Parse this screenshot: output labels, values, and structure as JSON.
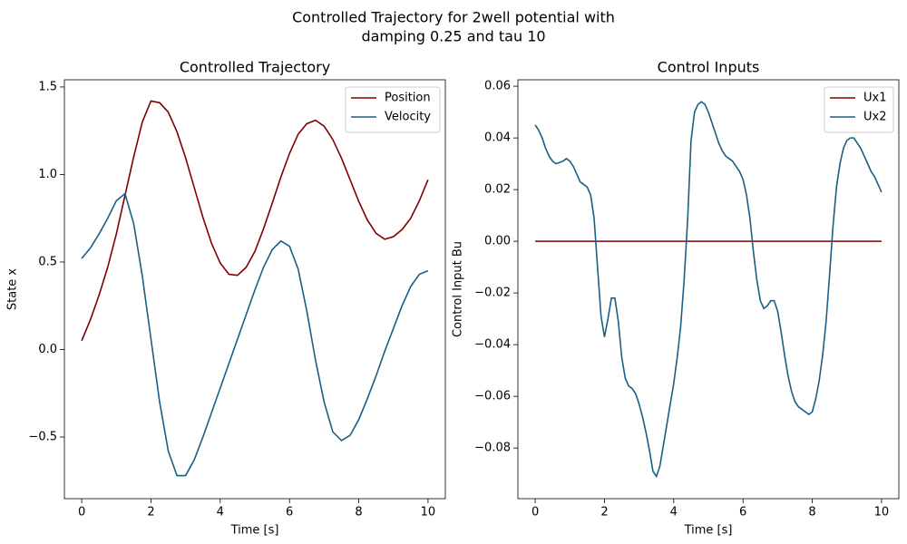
{
  "title": [
    "Controlled Trajectory for 2well potential with",
    "damping 0.25 and tau 10"
  ],
  "chart_data": [
    {
      "type": "line",
      "title": "Controlled Trajectory",
      "xlabel": "Time [s]",
      "ylabel": "State x",
      "xlim": [
        -0.5,
        10.5
      ],
      "xticks": [
        0,
        2,
        4,
        6,
        8,
        10
      ],
      "ylim": [
        -0.852,
        1.541
      ],
      "yticks": [
        {
          "value": -0.5,
          "label": "−0.5"
        },
        {
          "value": 0,
          "label": "0.0"
        },
        {
          "value": 0.5,
          "label": "0.5"
        },
        {
          "value": 1,
          "label": "1.0"
        },
        {
          "value": 1.5,
          "label": "1.5"
        }
      ],
      "legend": "upper right",
      "grid": false,
      "x": [
        0,
        0.25,
        0.5,
        0.75,
        1,
        1.25,
        1.5,
        1.75,
        2,
        2.25,
        2.5,
        2.75,
        3,
        3.25,
        3.5,
        3.75,
        4,
        4.25,
        4.5,
        4.75,
        5,
        5.25,
        5.5,
        5.75,
        6,
        6.25,
        6.5,
        6.75,
        7,
        7.25,
        7.5,
        7.75,
        8,
        8.25,
        8.5,
        8.75,
        9,
        9.25,
        9.5,
        9.75,
        10
      ],
      "series": [
        {
          "name": "Position",
          "color": "#800000",
          "values": [
            0.05,
            0.17,
            0.31,
            0.47,
            0.66,
            0.88,
            1.1,
            1.3,
            1.42,
            1.41,
            1.356,
            1.244,
            1.095,
            0.925,
            0.755,
            0.606,
            0.494,
            0.43,
            0.424,
            0.47,
            0.56,
            0.69,
            0.835,
            0.985,
            1.12,
            1.23,
            1.29,
            1.31,
            1.276,
            1.2,
            1.094,
            0.97,
            0.846,
            0.739,
            0.664,
            0.63,
            0.645,
            0.685,
            0.75,
            0.85,
            0.97
          ]
        },
        {
          "name": "Velocity",
          "color": "#1b5e85",
          "values": [
            0.52,
            0.58,
            0.66,
            0.75,
            0.85,
            0.89,
            0.72,
            0.42,
            0.06,
            -0.3,
            -0.58,
            -0.72,
            -0.72,
            -0.63,
            -0.5,
            -0.36,
            -0.22,
            -0.08,
            0.06,
            0.2,
            0.34,
            0.47,
            0.57,
            0.62,
            0.59,
            0.46,
            0.22,
            -0.06,
            -0.3,
            -0.47,
            -0.52,
            -0.49,
            -0.4,
            -0.28,
            -0.15,
            -0.01,
            0.12,
            0.25,
            0.36,
            0.43,
            0.45
          ]
        }
      ]
    },
    {
      "type": "line",
      "title": "Control Inputs",
      "xlabel": "Time [s]",
      "ylabel": "Control Input Bu",
      "xlim": [
        -0.5,
        10.5
      ],
      "xticks": [
        0,
        2,
        4,
        6,
        8,
        10
      ],
      "ylim": [
        -0.0996,
        0.0625
      ],
      "yticks": [
        {
          "value": -0.08,
          "label": "−0.08"
        },
        {
          "value": -0.06,
          "label": "−0.06"
        },
        {
          "value": -0.04,
          "label": "−0.04"
        },
        {
          "value": -0.02,
          "label": "−0.02"
        },
        {
          "value": 0,
          "label": "0.00"
        },
        {
          "value": 0.02,
          "label": "0.02"
        },
        {
          "value": 0.04,
          "label": "0.04"
        },
        {
          "value": 0.06,
          "label": "0.06"
        }
      ],
      "legend": "upper right",
      "grid": false,
      "x": [
        0,
        0.1,
        0.2,
        0.3,
        0.4,
        0.5,
        0.6,
        0.7,
        0.8,
        0.9,
        1,
        1.1,
        1.2,
        1.3,
        1.4,
        1.5,
        1.6,
        1.7,
        1.8,
        1.9,
        2,
        2.1,
        2.2,
        2.3,
        2.4,
        2.5,
        2.6,
        2.7,
        2.8,
        2.9,
        3,
        3.1,
        3.2,
        3.3,
        3.4,
        3.5,
        3.6,
        3.7,
        3.8,
        3.9,
        4,
        4.1,
        4.2,
        4.3,
        4.4,
        4.5,
        4.6,
        4.7,
        4.8,
        4.9,
        5,
        5.1,
        5.2,
        5.3,
        5.4,
        5.5,
        5.6,
        5.7,
        5.8,
        5.9,
        6,
        6.1,
        6.2,
        6.3,
        6.4,
        6.5,
        6.6,
        6.7,
        6.8,
        6.9,
        7,
        7.1,
        7.2,
        7.3,
        7.4,
        7.5,
        7.6,
        7.7,
        7.8,
        7.9,
        8,
        8.1,
        8.2,
        8.3,
        8.4,
        8.5,
        8.6,
        8.7,
        8.8,
        8.9,
        9,
        9.1,
        9.2,
        9.3,
        9.4,
        9.5,
        9.6,
        9.7,
        9.8,
        9.9,
        10
      ],
      "series": [
        {
          "name": "Ux1",
          "color": "#800000",
          "values": [
            0,
            0,
            0,
            0,
            0,
            0,
            0,
            0,
            0,
            0,
            0,
            0,
            0,
            0,
            0,
            0,
            0,
            0,
            0,
            0,
            0,
            0,
            0,
            0,
            0,
            0,
            0,
            0,
            0,
            0,
            0,
            0,
            0,
            0,
            0,
            0,
            0,
            0,
            0,
            0,
            0,
            0,
            0,
            0,
            0,
            0,
            0,
            0,
            0,
            0,
            0,
            0,
            0,
            0,
            0,
            0,
            0,
            0,
            0,
            0,
            0,
            0,
            0,
            0,
            0,
            0,
            0,
            0,
            0,
            0,
            0,
            0,
            0,
            0,
            0,
            0,
            0,
            0,
            0,
            0,
            0,
            0,
            0,
            0,
            0,
            0,
            0,
            0,
            0,
            0,
            0,
            0,
            0,
            0,
            0,
            0,
            0,
            0,
            0,
            0,
            0
          ]
        },
        {
          "name": "Ux2",
          "color": "#1b5e85",
          "values": [
            0.045,
            0.043,
            0.04,
            0.036,
            0.033,
            0.031,
            0.03,
            0.0305,
            0.031,
            0.032,
            0.031,
            0.029,
            0.026,
            0.023,
            0.022,
            0.021,
            0.018,
            0.009,
            -0.01,
            -0.029,
            -0.037,
            -0.03,
            -0.022,
            -0.022,
            -0.031,
            -0.045,
            -0.053,
            -0.056,
            -0.057,
            -0.059,
            -0.063,
            -0.068,
            -0.074,
            -0.081,
            -0.089,
            -0.091,
            -0.087,
            -0.079,
            -0.071,
            -0.063,
            -0.055,
            -0.045,
            -0.033,
            -0.015,
            0.008,
            0.039,
            0.05,
            0.053,
            0.054,
            0.053,
            0.05,
            0.046,
            0.042,
            0.038,
            0.035,
            0.033,
            0.032,
            0.031,
            0.029,
            0.027,
            0.024,
            0.018,
            0.009,
            -0.004,
            -0.015,
            -0.023,
            -0.026,
            -0.025,
            -0.023,
            -0.023,
            -0.027,
            -0.035,
            -0.044,
            -0.052,
            -0.058,
            -0.062,
            -0.064,
            -0.065,
            -0.066,
            -0.067,
            -0.066,
            -0.061,
            -0.054,
            -0.044,
            -0.031,
            -0.013,
            0.006,
            0.021,
            0.03,
            0.036,
            0.039,
            0.04,
            0.04,
            0.038,
            0.036,
            0.033,
            0.03,
            0.027,
            0.025,
            0.022,
            0.019
          ]
        }
      ]
    }
  ]
}
